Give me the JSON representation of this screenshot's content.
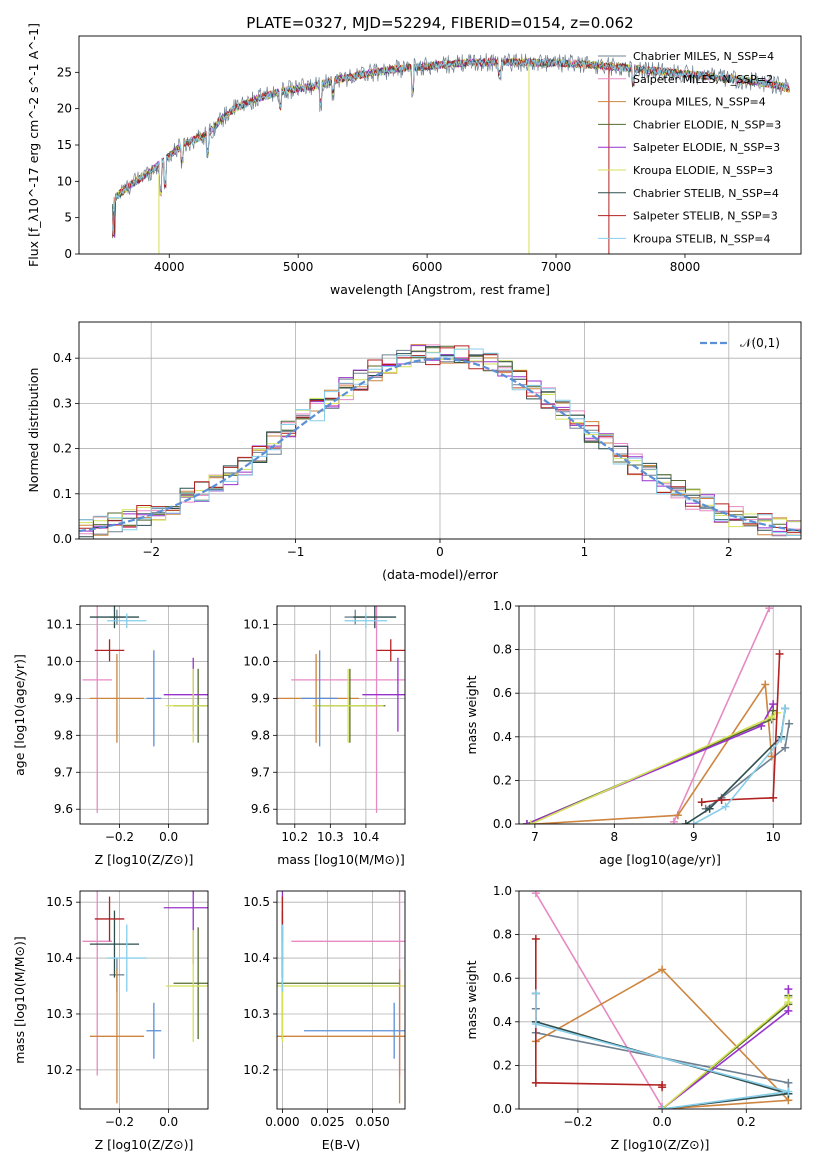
{
  "chart_data": [
    {
      "type": "line",
      "title": "PLATE=0327, MJD=52294, FIBERID=0154, z=0.062",
      "xlabel": "wavelength [Angstrom, rest frame]",
      "ylabel": "Flux [f_λ10^-17 erg cm^-2 s^-1 A^-1]",
      "xlim": [
        3300,
        8900
      ],
      "ylim": [
        0,
        30
      ],
      "xticks": [
        4000,
        5000,
        6000,
        7000,
        8000
      ],
      "yticks": [
        0,
        5,
        10,
        15,
        20,
        25
      ],
      "legend": "right",
      "series": [
        {
          "name": "Chabrier MILES, N_SSP=4",
          "color": "#708090"
        },
        {
          "name": "Salpeter MILES, N_SSP=2",
          "color": "#e78ac3"
        },
        {
          "name": "Kroupa MILES, N_SSP=4",
          "color": "#cd853f"
        },
        {
          "name": "Chabrier ELODIE, N_SSP=3",
          "color": "#556b2f"
        },
        {
          "name": "Salpeter ELODIE, N_SSP=3",
          "color": "#9932cc"
        },
        {
          "name": "Kroupa ELODIE, N_SSP=3",
          "color": "#d4e157"
        },
        {
          "name": "Chabrier STELIB, N_SSP=4",
          "color": "#2f4f4f"
        },
        {
          "name": "Salpeter STELIB, N_SSP=3",
          "color": "#b22222"
        },
        {
          "name": "Kroupa STELIB, N_SSP=4",
          "color": "#87ceeb"
        }
      ],
      "continuum": {
        "x": [
          3560,
          3700,
          3900,
          4000,
          4100,
          4200,
          4300,
          4400,
          4500,
          4700,
          4900,
          5100,
          5300,
          5500,
          5700,
          5900,
          6100,
          6300,
          6500,
          6700,
          6900,
          7100,
          7300,
          7500,
          7700,
          7900,
          8100,
          8300,
          8500,
          8700,
          8810
        ],
        "y": [
          7.5,
          9.5,
          12,
          13.5,
          15,
          15.8,
          16.5,
          18.5,
          20,
          21.5,
          22.5,
          23,
          24,
          24.7,
          25.3,
          25.7,
          26,
          26.3,
          26.4,
          26.4,
          26.3,
          26.2,
          26,
          25.7,
          25.3,
          25,
          24.6,
          24.2,
          23.8,
          23.3,
          22.7
        ]
      }
    },
    {
      "type": "line",
      "xlabel": "(data-model)/error",
      "ylabel": "Normed distribution",
      "xlim": [
        -2.5,
        2.5
      ],
      "ylim": [
        0,
        0.48
      ],
      "xticks": [
        -2,
        -1,
        0,
        1,
        2
      ],
      "yticks": [
        0.0,
        0.1,
        0.2,
        0.3,
        0.4
      ],
      "grid": true,
      "legend": "top-right",
      "reference_label": "𝒩(0,1)",
      "reference_color": "#5b8fd6"
    },
    {
      "type": "scatter",
      "xlabel": "Z [log10(Z/Z⊙)]",
      "ylabel": "age  [log10(age/yr)]",
      "xlim": [
        -0.36,
        0.16
      ],
      "ylim": [
        9.56,
        10.15
      ],
      "xticks": [
        -0.2,
        0.0
      ],
      "yticks": [
        9.6,
        9.7,
        9.8,
        9.9,
        10.0,
        10.1
      ],
      "grid": true
    },
    {
      "type": "scatter",
      "xlabel": "mass [log10(M/M⊙)]",
      "xlim": [
        10.15,
        10.51
      ],
      "ylim": [
        9.56,
        10.15
      ],
      "xticks": [
        10.2,
        10.3,
        10.4
      ],
      "yticks": [
        9.6,
        9.7,
        9.8,
        9.9,
        10.0,
        10.1
      ],
      "grid": true
    },
    {
      "type": "line",
      "xlabel": "age  [log10(age/yr)]",
      "ylabel": "mass weight",
      "xlim": [
        6.8,
        10.35
      ],
      "ylim": [
        0,
        1
      ],
      "xticks": [
        7,
        8,
        9,
        10
      ],
      "yticks": [
        0.0,
        0.2,
        0.4,
        0.6,
        0.8,
        1.0
      ],
      "grid": true
    },
    {
      "type": "scatter",
      "xlabel": "Z [log10(Z/Z⊙)]",
      "ylabel": "mass [log10(M/M⊙)]",
      "xlim": [
        -0.36,
        0.16
      ],
      "ylim": [
        10.13,
        10.52
      ],
      "xticks": [
        -0.2,
        0.0
      ],
      "yticks": [
        10.2,
        10.3,
        10.4,
        10.5
      ],
      "grid": true
    },
    {
      "type": "scatter",
      "xlabel": "E(B-V)",
      "xlim": [
        -0.003,
        0.068
      ],
      "ylim": [
        10.13,
        10.52
      ],
      "xticks": [
        0.0,
        0.025,
        0.05
      ],
      "yticks": [
        10.2,
        10.3,
        10.4,
        10.5
      ],
      "grid": true
    },
    {
      "type": "line",
      "xlabel": "Z [log10(Z/Z⊙)]",
      "ylabel": "mass weight",
      "xlim": [
        -0.34,
        0.33
      ],
      "ylim": [
        0,
        1
      ],
      "xticks": [
        -0.2,
        0.0,
        0.2
      ],
      "yticks": [
        0.0,
        0.2,
        0.4,
        0.6,
        0.8,
        1.0
      ],
      "grid": true
    }
  ],
  "fits": [
    {
      "imf": "Chabrier MILES",
      "color": "#708090",
      "ssp_age": [
        9.15,
        9.35,
        10.15,
        10.2
      ],
      "ssp_Z": [
        0.3,
        0.3,
        -0.3,
        -0.3
      ],
      "ssp_w": [
        0.07,
        0.12,
        0.35,
        0.46
      ],
      "age": [
        10.12,
        0.02
      ],
      "Z": [
        -0.21,
        0.03
      ],
      "mass": [
        10.37,
        0.03
      ],
      "ebv": [
        0.0,
        0.0
      ]
    },
    {
      "imf": "Salpeter MILES",
      "color": "#e78ac3",
      "ssp_age": [
        8.75,
        9.95
      ],
      "ssp_Z": [
        0.0,
        -0.3
      ],
      "ssp_w": [
        0.01,
        0.99
      ],
      "age": [
        9.95,
        0.36
      ],
      "Z": [
        -0.29,
        0.06
      ],
      "mass": [
        10.43,
        0.24
      ],
      "ebv": [
        0.065,
        0.06
      ]
    },
    {
      "imf": "Kroupa MILES",
      "color": "#cd853f",
      "ssp_age": [
        7.0,
        8.8,
        9.9,
        9.98
      ],
      "ssp_Z": [
        0.0,
        0.3,
        0.0,
        -0.3
      ],
      "ssp_w": [
        0.0,
        0.04,
        0.64,
        0.31
      ],
      "age": [
        9.9,
        0.12
      ],
      "Z": [
        -0.21,
        0.11
      ],
      "mass": [
        10.26,
        0.12
      ],
      "ebv": [
        0.065,
        0.08
      ]
    },
    {
      "imf": "Chabrier ELODIE",
      "color": "#556b2f",
      "ssp_age": [
        6.9,
        9.98,
        10.0
      ],
      "ssp_Z": [
        0.0,
        0.3,
        0.3
      ],
      "ssp_w": [
        0.0,
        0.48,
        0.52
      ],
      "age": [
        9.88,
        0.1
      ],
      "Z": [
        0.12,
        0.1
      ],
      "mass": [
        10.355,
        0.1
      ],
      "ebv": [
        0.0,
        0.065
      ]
    },
    {
      "imf": "Salpeter ELODIE",
      "color": "#9932cc",
      "ssp_age": [
        6.9,
        9.85,
        10.0
      ],
      "ssp_Z": [
        0.0,
        0.3,
        0.3
      ],
      "ssp_w": [
        0.0,
        0.45,
        0.55
      ],
      "age": [
        9.91,
        0.1
      ],
      "Z": [
        0.1,
        0.12
      ],
      "mass": [
        10.49,
        0.1
      ],
      "ebv": [
        0.0,
        0.0
      ]
    },
    {
      "imf": "Kroupa ELODIE",
      "color": "#d4e157",
      "ssp_age": [
        6.95,
        9.98,
        10.05
      ],
      "ssp_Z": [
        0.0,
        0.3,
        0.3
      ],
      "ssp_w": [
        0.0,
        0.49,
        0.51
      ],
      "age": [
        9.88,
        0.1
      ],
      "Z": [
        0.1,
        0.11
      ],
      "mass": [
        10.35,
        0.1
      ],
      "ebv": [
        0.0,
        0.09
      ]
    },
    {
      "imf": "Chabrier STELIB",
      "color": "#2f4f4f",
      "ssp_age": [
        8.9,
        9.2,
        10.1,
        10.15
      ],
      "ssp_Z": [
        0.0,
        0.3,
        -0.3,
        -0.3
      ],
      "ssp_w": [
        0.0,
        0.07,
        0.4,
        0.53
      ],
      "age": [
        10.12,
        0.03
      ],
      "Z": [
        -0.22,
        0.1
      ],
      "mass": [
        10.425,
        0.06
      ],
      "ebv": [
        0.0,
        0.0
      ]
    },
    {
      "imf": "Salpeter STELIB",
      "color": "#b22222",
      "ssp_age": [
        9.1,
        9.35,
        10.0,
        10.08
      ],
      "ssp_Z": [
        0.0,
        0.0,
        -0.3,
        -0.3
      ],
      "ssp_w": [
        0.1,
        0.11,
        0.12,
        0.78
      ],
      "age": [
        10.03,
        0.03
      ],
      "Z": [
        -0.24,
        0.06
      ],
      "mass": [
        10.47,
        0.04
      ],
      "ebv": [
        0.0,
        0.0
      ]
    },
    {
      "imf": "Kroupa STELIB",
      "color": "#87ceeb",
      "ssp_age": [
        9.0,
        9.4,
        10.1,
        10.15
      ],
      "ssp_Z": [
        0.0,
        0.3,
        -0.3,
        -0.3
      ],
      "ssp_w": [
        0.0,
        0.08,
        0.39,
        0.53
      ],
      "age": [
        10.11,
        0.02
      ],
      "Z": [
        -0.17,
        0.08
      ],
      "mass": [
        10.4,
        0.06
      ],
      "ebv": [
        0.0,
        0.0
      ]
    },
    {
      "imf": "reference",
      "color": "#5b8fd6",
      "ssp_age": [],
      "ssp_Z": [],
      "ssp_w": [],
      "age": [
        9.9,
        0.13
      ],
      "Z": [
        -0.06,
        0.03
      ],
      "mass": [
        10.27,
        0.05
      ],
      "ebv": [
        0.062,
        0.05
      ]
    }
  ]
}
